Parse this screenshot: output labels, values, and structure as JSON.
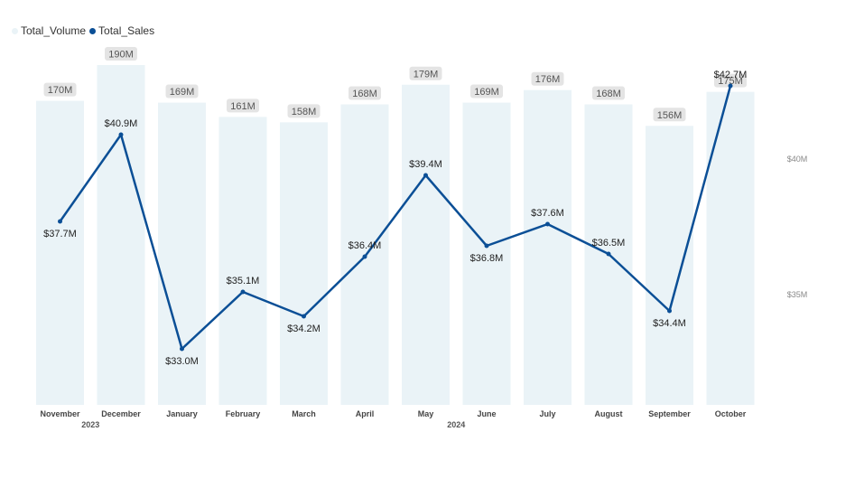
{
  "chart_data": {
    "type": "bar+line",
    "categories": [
      "November",
      "December",
      "January",
      "February",
      "March",
      "April",
      "May",
      "June",
      "July",
      "August",
      "September",
      "October"
    ],
    "year_labels": [
      {
        "text": "2023",
        "at": 0.5
      },
      {
        "text": "2024",
        "at": 6.5
      }
    ],
    "series": [
      {
        "name": "Total_Volume",
        "type": "bar",
        "color": "#eaf3f7",
        "axis": "left",
        "values": [
          170,
          190,
          169,
          161,
          158,
          168,
          179,
          169,
          176,
          168,
          156,
          175
        ],
        "labels": [
          "170M",
          "190M",
          "169M",
          "161M",
          "158M",
          "168M",
          "179M",
          "169M",
          "176M",
          "168M",
          "156M",
          "175M"
        ]
      },
      {
        "name": "Total_Sales",
        "type": "line",
        "color": "#0b4f96",
        "axis": "right",
        "values": [
          37.7,
          40.9,
          33.0,
          35.1,
          34.2,
          36.4,
          39.4,
          36.8,
          37.6,
          36.5,
          34.4,
          42.7
        ],
        "labels": [
          "$37.7M",
          "$40.9M",
          "$33.0M",
          "$35.1M",
          "$34.2M",
          "$36.4M",
          "$39.4M",
          "$36.8M",
          "$37.6M",
          "$36.5M",
          "$34.4M",
          "$42.7M"
        ],
        "label_pos": [
          "below",
          "above",
          "below",
          "above",
          "below",
          "above",
          "above",
          "below",
          "above",
          "above",
          "below",
          "above"
        ]
      }
    ],
    "y2_ticks": [
      {
        "value": 40,
        "label": "$40M"
      },
      {
        "value": 35,
        "label": "$35M"
      }
    ],
    "y_range": [
      0,
      190
    ],
    "y2_range": [
      32.0,
      42.7
    ],
    "legend": "top-left"
  }
}
